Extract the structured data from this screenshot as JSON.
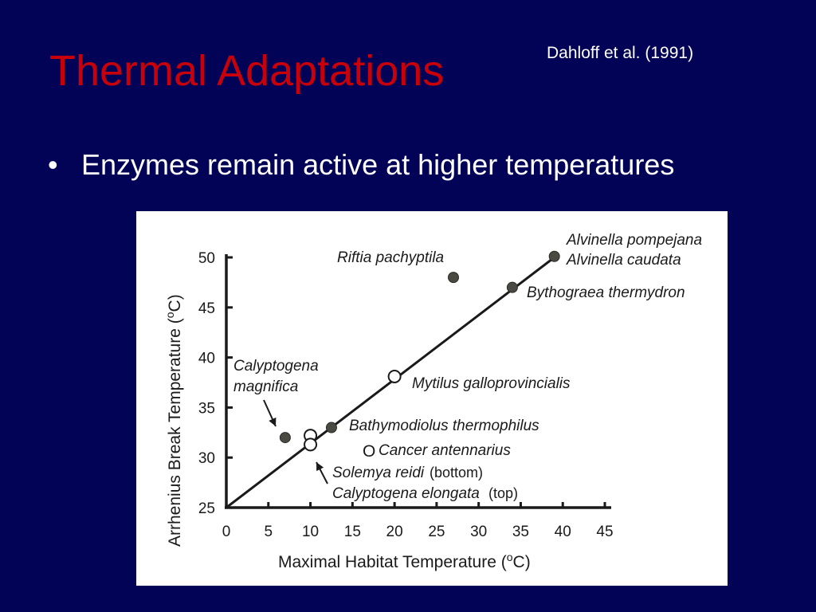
{
  "slide": {
    "title": "Thermal Adaptations",
    "citation": "Dahloff et al. (1991)",
    "bullet_symbol": "•",
    "bullet": "Enzymes remain active at higher temperatures"
  },
  "colors": {
    "background": "#020356",
    "title": "#c8000a",
    "text": "#ffffff",
    "figure_background": "#ffffff"
  },
  "chart_data": {
    "type": "scatter",
    "xlabel_prefix": "Maximal Habitat Temperature (",
    "xlabel_sup": "o",
    "xlabel_suffix": "C)",
    "ylabel_prefix": "Arrhenius Break Temperature (",
    "ylabel_sup": "o",
    "ylabel_suffix": "C)",
    "xlim": [
      0,
      45
    ],
    "ylim": [
      25,
      50
    ],
    "x_ticks": [
      0,
      5,
      10,
      15,
      20,
      25,
      30,
      35,
      40,
      45
    ],
    "y_ticks": [
      25,
      30,
      35,
      40,
      45,
      50
    ],
    "grid": false,
    "regression_line": {
      "x": [
        0,
        39
      ],
      "y": [
        25,
        50
      ]
    },
    "points": [
      {
        "x": 7,
        "y": 32,
        "filled": true
      },
      {
        "x": 10,
        "y": 32.2,
        "filled": false
      },
      {
        "x": 10,
        "y": 31.3,
        "filled": false
      },
      {
        "x": 12.5,
        "y": 33,
        "filled": true
      },
      {
        "x": 20,
        "y": 38.1,
        "filled": false
      },
      {
        "x": 27,
        "y": 48,
        "filled": true
      },
      {
        "x": 34,
        "y": 47,
        "filled": true
      },
      {
        "x": 39,
        "y": 50.1,
        "filled": true
      }
    ],
    "annotations": [
      {
        "text": "Alvinella pompejana",
        "italic": true
      },
      {
        "text": "Alvinella caudata",
        "italic": true
      },
      {
        "text": "Riftia pachyptila",
        "italic": true
      },
      {
        "text": "Bythograea thermydron",
        "italic": true
      },
      {
        "text": "Calyptogena",
        "italic": true
      },
      {
        "text": "magnifica",
        "italic": true
      },
      {
        "text": "Mytilus galloprovincialis",
        "italic": true
      },
      {
        "text": "Bathymodiolus thermophilus",
        "italic": true
      },
      {
        "text": "O",
        "italic": false
      },
      {
        "text": "Cancer antennarius",
        "italic": true
      },
      {
        "text": "Solemya reidi",
        "italic": true
      },
      {
        "text": "(bottom)",
        "italic": false
      },
      {
        "text": "Calyptogena elongata",
        "italic": true
      },
      {
        "text": "(top)",
        "italic": false
      }
    ]
  }
}
